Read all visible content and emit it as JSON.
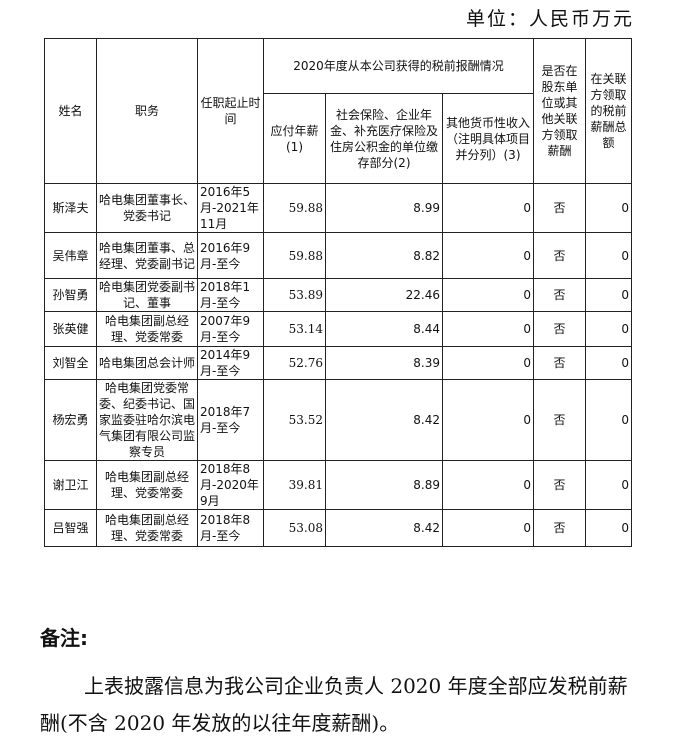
{
  "unit_label": "单位：人民币万元",
  "table": {
    "headers": {
      "name": "姓名",
      "position": "职务",
      "term": "任职起止时间",
      "group": "2020年度从本公司获得的税前报酬情况",
      "salary": "应付年薪(1)",
      "social": "社会保险、企业年金、补充医疗保险及住房公积金的单位缴存部分(2)",
      "other": "其他货币性收入（注明具体项目并分列）(3)",
      "related_flag": "是否在股东单位或其他关联方领取薪酬",
      "related_total": "在关联方领取的税前薪酬总额"
    },
    "rows": [
      {
        "name": "斯泽夫",
        "position": "哈电集团董事长、党委书记",
        "term": "2016年5月-2021年11月",
        "salary": "59.88",
        "social": "8.99",
        "other": "0",
        "related_flag": "否",
        "related_total": "0"
      },
      {
        "name": "吴伟章",
        "position": "哈电集团董事、总经理、党委副书记",
        "term": "2016年9月-至今",
        "salary": "59.88",
        "social": "8.82",
        "other": "0",
        "related_flag": "否",
        "related_total": "0"
      },
      {
        "name": "孙智勇",
        "position": "哈电集团党委副书记、董事",
        "term": "2018年1月-至今",
        "salary": "53.89",
        "social": "22.46",
        "other": "0",
        "related_flag": "否",
        "related_total": "0"
      },
      {
        "name": "张英健",
        "position": "哈电集团副总经理、党委常委",
        "term": "2007年9月-至今",
        "salary": "53.14",
        "social": "8.44",
        "other": "0",
        "related_flag": "否",
        "related_total": "0"
      },
      {
        "name": "刘智全",
        "position": "哈电集团总会计师",
        "term": "2014年9月-至今",
        "salary": "52.76",
        "social": "8.39",
        "other": "0",
        "related_flag": "否",
        "related_total": "0"
      },
      {
        "name": "杨宏勇",
        "position": "哈电集团党委常委、纪委书记、国家监委驻哈尔滨电气集团有限公司监察专员",
        "term": "2018年7月-至今",
        "salary": "53.52",
        "social": "8.42",
        "other": "0",
        "related_flag": "否",
        "related_total": "0"
      },
      {
        "name": "谢卫江",
        "position": "哈电集团副总经理、党委常委",
        "term": "2018年8月-2020年9月",
        "salary": "39.81",
        "social": "8.89",
        "other": "0",
        "related_flag": "否",
        "related_total": "0"
      },
      {
        "name": "吕智强",
        "position": "哈电集团副总经理、党委常委",
        "term": "2018年8月-至今",
        "salary": "53.08",
        "social": "8.42",
        "other": "0",
        "related_flag": "否",
        "related_total": "0"
      }
    ]
  },
  "notes": {
    "title": "备注:",
    "body": "上表披露信息为我公司企业负责人 2020 年度全部应发税前薪酬(不含 2020 年发放的以往年度薪酬)。"
  }
}
